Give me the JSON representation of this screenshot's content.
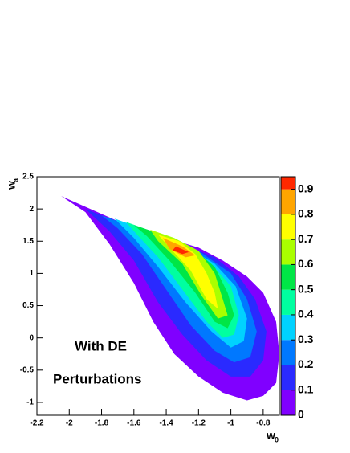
{
  "chart_data": {
    "type": "contour",
    "xlabel": "w",
    "xlabel_sub": "0",
    "ylabel": "w",
    "ylabel_sub": "a",
    "xlim": [
      -2.2,
      -0.7
    ],
    "ylim": [
      -1.2,
      2.5
    ],
    "xticks": [
      -2.2,
      -2,
      -1.8,
      -1.6,
      -1.4,
      -1.2,
      -1,
      -0.8
    ],
    "yticks": [
      -1,
      -0.5,
      0,
      0.5,
      1,
      1.5,
      2,
      2.5
    ],
    "zlim": [
      0,
      0.95
    ],
    "zticks": [
      0,
      0.1,
      0.2,
      0.3,
      0.4,
      0.5,
      0.6,
      0.7,
      0.8,
      0.9
    ],
    "annotations": [
      "With DE",
      "Perturbations"
    ],
    "contours": [
      {
        "level": 0,
        "color": "#8000ff",
        "x": [
          -2.05,
          -1.78,
          -1.6,
          -1.4,
          -1.2,
          -1.05,
          -0.9,
          -0.8,
          -0.72,
          -0.7,
          -0.72,
          -0.8,
          -0.9,
          -1.05,
          -1.2,
          -1.35,
          -1.48,
          -1.6,
          -1.75,
          -1.9
        ],
        "y": [
          2.2,
          1.9,
          1.7,
          1.55,
          1.4,
          1.2,
          0.95,
          0.7,
          0.25,
          -0.25,
          -0.7,
          -0.9,
          -0.97,
          -0.85,
          -0.6,
          -0.25,
          0.25,
          0.85,
          1.45,
          1.95
        ]
      },
      {
        "level": 0.1,
        "color": "#2a2aff",
        "x": [
          -1.9,
          -1.7,
          -1.5,
          -1.3,
          -1.1,
          -0.95,
          -0.85,
          -0.78,
          -0.8,
          -0.88,
          -1.0,
          -1.15,
          -1.3,
          -1.45,
          -1.6,
          -1.75
        ],
        "y": [
          2.0,
          1.8,
          1.6,
          1.45,
          1.25,
          0.95,
          0.6,
          0.1,
          -0.35,
          -0.6,
          -0.6,
          -0.35,
          0.05,
          0.55,
          1.2,
          1.65
        ]
      },
      {
        "level": 0.2,
        "color": "#0078ff",
        "x": [
          -1.8,
          -1.6,
          -1.4,
          -1.2,
          -1.0,
          -0.9,
          -0.84,
          -0.88,
          -0.98,
          -1.1,
          -1.25,
          -1.4,
          -1.55,
          -1.7
        ],
        "y": [
          1.9,
          1.72,
          1.55,
          1.35,
          1.0,
          0.6,
          0.1,
          -0.3,
          -0.38,
          -0.2,
          0.2,
          0.75,
          1.3,
          1.7
        ]
      },
      {
        "level": 0.3,
        "color": "#00d2ff",
        "x": [
          -1.72,
          -1.5,
          -1.3,
          -1.1,
          -0.97,
          -0.9,
          -0.92,
          -1.0,
          -1.12,
          -1.28,
          -1.45,
          -1.6
        ],
        "y": [
          1.85,
          1.65,
          1.45,
          1.15,
          0.8,
          0.3,
          -0.05,
          -0.15,
          0.1,
          0.55,
          1.1,
          1.55
        ]
      },
      {
        "level": 0.4,
        "color": "#00ffa0",
        "x": [
          -1.65,
          -1.45,
          -1.28,
          -1.12,
          -1.0,
          -0.95,
          -0.98,
          -1.05,
          -1.15,
          -1.3,
          -1.45,
          -1.58
        ],
        "y": [
          1.8,
          1.62,
          1.43,
          1.15,
          0.8,
          0.35,
          0.05,
          0.0,
          0.25,
          0.75,
          1.25,
          1.6
        ]
      },
      {
        "level": 0.5,
        "color": "#00e646",
        "x": [
          -1.6,
          -1.42,
          -1.25,
          -1.1,
          -1.02,
          -0.98,
          -1.02,
          -1.1,
          -1.22,
          -1.38,
          -1.52
        ],
        "y": [
          1.75,
          1.6,
          1.42,
          1.1,
          0.7,
          0.35,
          0.15,
          0.25,
          0.7,
          1.2,
          1.58
        ]
      },
      {
        "level": 0.6,
        "color": "#aaff00",
        "x": [
          -1.5,
          -1.35,
          -1.2,
          -1.1,
          -1.05,
          -1.02,
          -1.08,
          -1.18,
          -1.3,
          -1.45
        ],
        "y": [
          1.68,
          1.55,
          1.35,
          1.0,
          0.6,
          0.35,
          0.3,
          0.65,
          1.15,
          1.5
        ]
      },
      {
        "level": 0.7,
        "color": "#ffff00",
        "x": [
          -1.45,
          -1.32,
          -1.22,
          -1.15,
          -1.1,
          -1.08,
          -1.15,
          -1.25,
          -1.38
        ],
        "y": [
          1.6,
          1.5,
          1.3,
          1.0,
          0.7,
          0.45,
          0.6,
          1.05,
          1.4
        ]
      },
      {
        "level": 0.8,
        "color": "#ffa500",
        "x": [
          -1.42,
          -1.3,
          -1.22,
          -1.28,
          -1.38
        ],
        "y": [
          1.55,
          1.42,
          1.28,
          1.25,
          1.38
        ]
      },
      {
        "level": 0.9,
        "color": "#ff2800",
        "x": [
          -1.34,
          -1.26,
          -1.3,
          -1.36
        ],
        "y": [
          1.42,
          1.33,
          1.3,
          1.36
        ]
      }
    ]
  }
}
